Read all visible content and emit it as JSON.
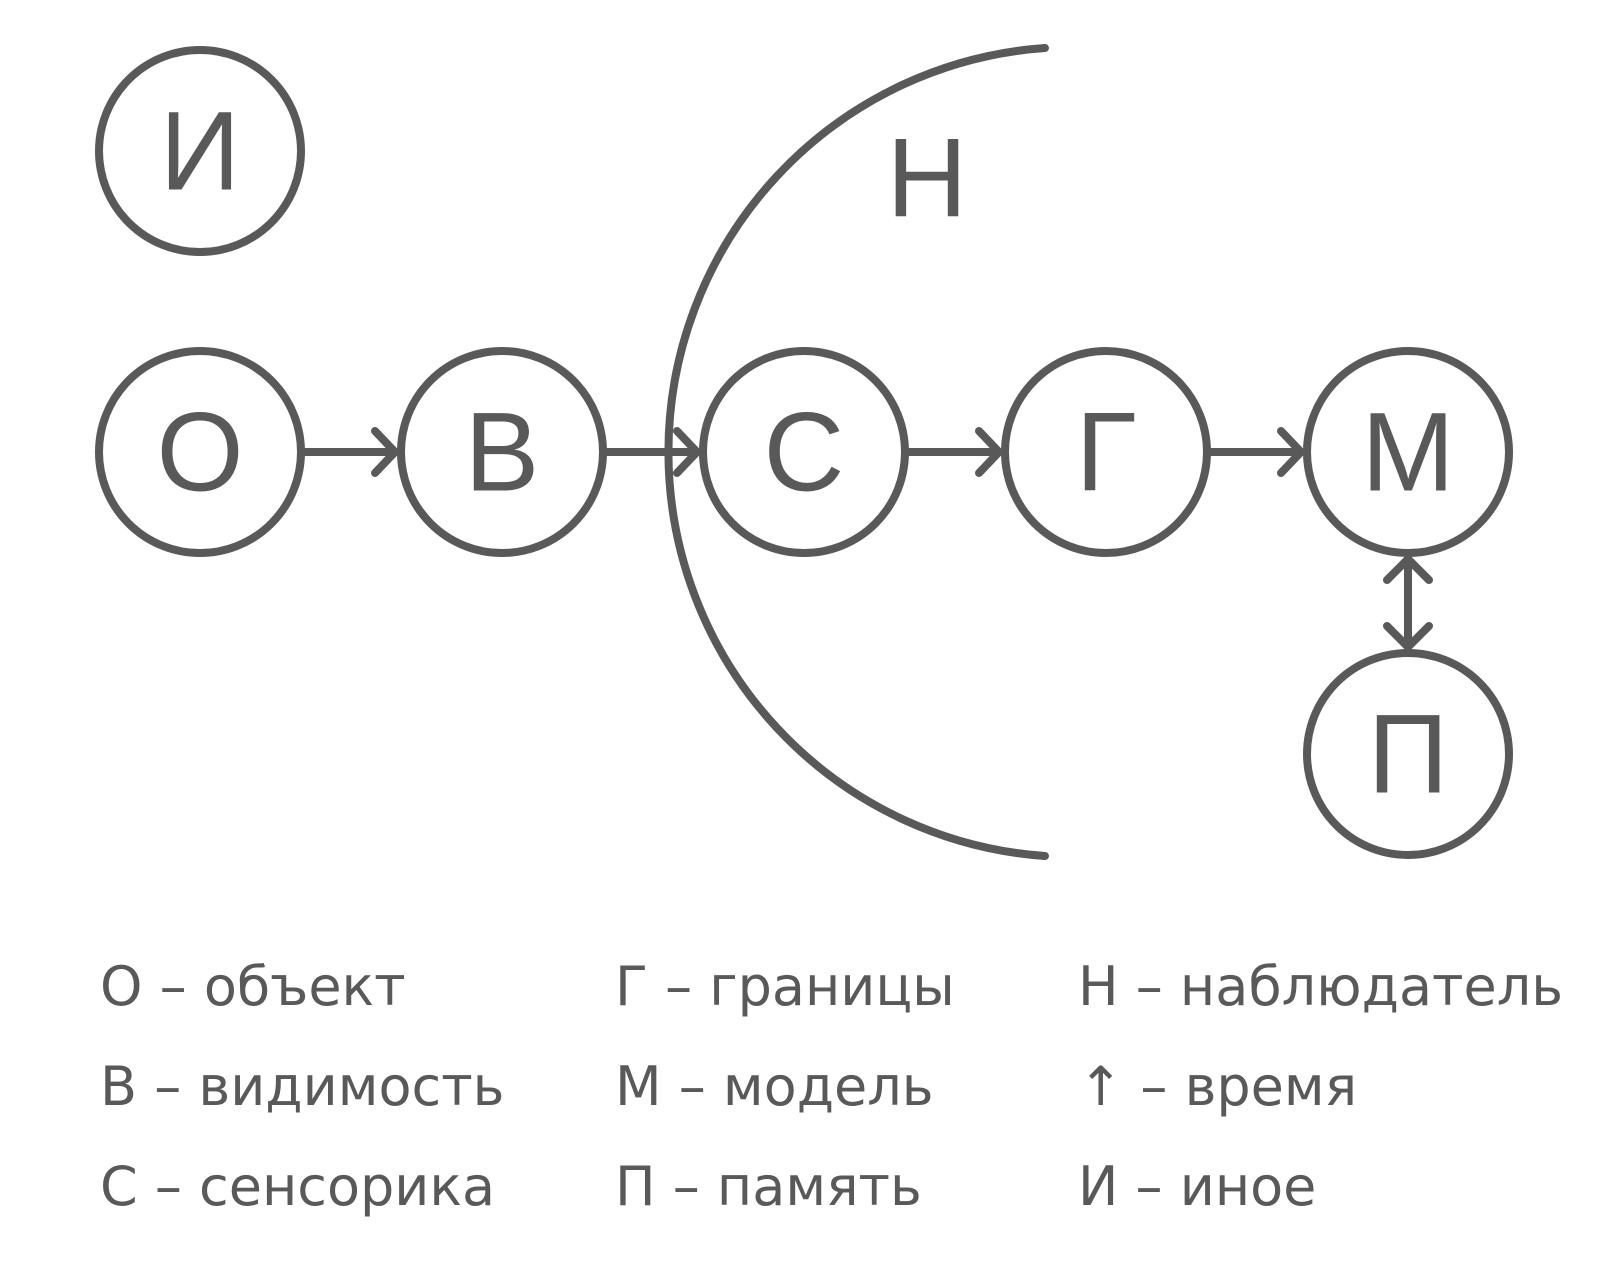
{
  "colors": {
    "stroke": "#595959",
    "background": "#ffffff"
  },
  "nodes": {
    "other": "И",
    "object": "О",
    "visibility": "В",
    "sensorics": "С",
    "boundaries": "Г",
    "model": "М",
    "memory": "П",
    "observer": "Н"
  },
  "legend": {
    "col1": [
      "О – объект",
      "В – видимость",
      "С – сенсорика"
    ],
    "col2": [
      "Г – границы",
      "М – модель",
      "П – память"
    ],
    "col3": [
      "Н – наблюдатель",
      "↑ – время",
      "И – иное"
    ]
  }
}
